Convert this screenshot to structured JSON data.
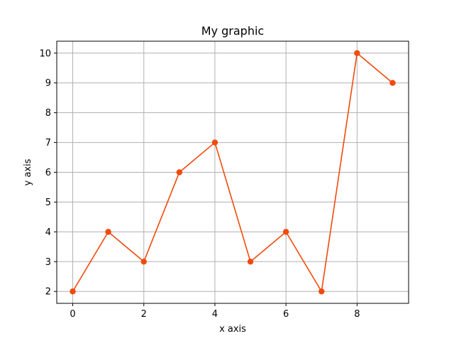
{
  "chart_data": {
    "type": "line",
    "title": "My graphic",
    "xlabel": "x axis",
    "ylabel": "y axis",
    "x": [
      0,
      1,
      2,
      3,
      4,
      5,
      6,
      7,
      8,
      9
    ],
    "series": [
      {
        "values": [
          2,
          4,
          3,
          6,
          7,
          3,
          4,
          2,
          10,
          9
        ],
        "color": "#f14a0c",
        "marker": "circle"
      }
    ],
    "xlim": [
      -0.45,
      9.45
    ],
    "ylim": [
      1.6,
      10.4
    ],
    "xticks": [
      0,
      2,
      4,
      6,
      8
    ],
    "yticks": [
      2,
      3,
      4,
      5,
      6,
      7,
      8,
      9,
      10
    ],
    "grid": true,
    "grid_color": "#b0b0b0"
  }
}
